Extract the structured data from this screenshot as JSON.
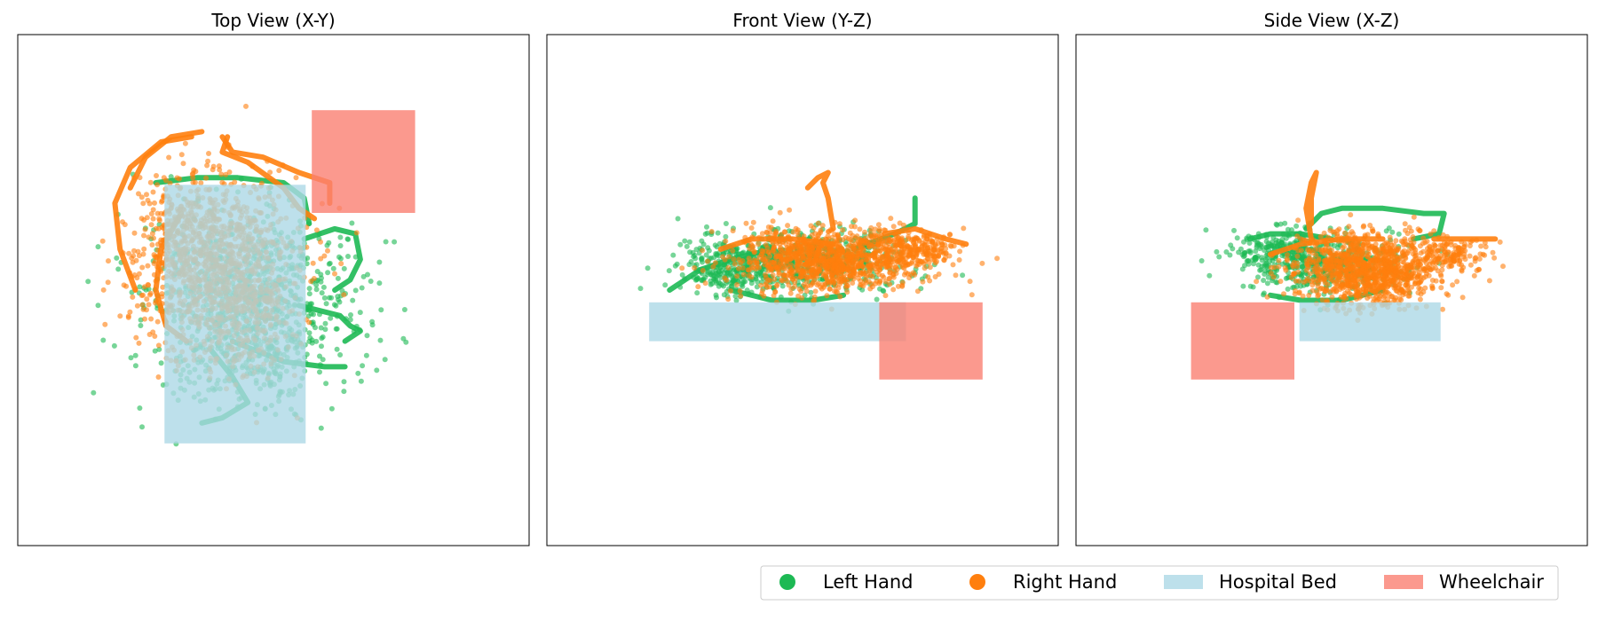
{
  "chart_data": {
    "type": "scatter",
    "legend_placement": "bottom-right",
    "grid": false,
    "axes_ticks": false,
    "colors": {
      "left_hand": "#1db954",
      "right_hand": "#ff7f0e",
      "hospital_bed": "#add8e6",
      "wheelchair": "#fa8072"
    },
    "legend": {
      "left_hand": "Left Hand",
      "right_hand": "Right Hand",
      "hospital_bed": "Hospital Bed",
      "wheelchair": "Wheelchair"
    },
    "panels": [
      {
        "id": "top",
        "title": "Top View (X-Y)",
        "xlim": [
          0,
          100
        ],
        "ylim": [
          0,
          100
        ],
        "rects": [
          {
            "kind": "hospital_bed",
            "x0": 28.7,
            "x1": 56.3,
            "y0": 20.0,
            "y1": 70.6
          },
          {
            "kind": "wheelchair",
            "x0": 57.5,
            "x1": 77.7,
            "y0": 65.1,
            "y1": 85.2
          }
        ],
        "left_hand": {
          "clusters": [
            {
              "cx": 46,
              "cy": 50,
              "sx": 10,
              "sy": 7,
              "n": 650
            },
            {
              "cx": 49,
              "cy": 38,
              "sx": 9,
              "sy": 6,
              "n": 250
            },
            {
              "cx": 38,
              "cy": 44,
              "sx": 7,
              "sy": 9,
              "n": 150
            }
          ],
          "paths": [
            [
              [
                27,
                71
              ],
              [
                35,
                72
              ],
              [
                43,
                72
              ],
              [
                52,
                71
              ],
              [
                56,
                68
              ],
              [
                57,
                63
              ]
            ],
            [
              [
                38,
                38
              ],
              [
                42,
                33
              ],
              [
                45,
                28
              ],
              [
                40,
                25
              ],
              [
                36,
                24
              ]
            ],
            [
              [
                55,
                47
              ],
              [
                63,
                45
              ],
              [
                65,
                43
              ],
              [
                67,
                42
              ],
              [
                64,
                40
              ]
            ],
            [
              [
                42,
                40
              ],
              [
                52,
                36
              ],
              [
                60,
                35
              ],
              [
                64,
                35
              ]
            ],
            [
              [
                56,
                60
              ],
              [
                62,
                62
              ],
              [
                66,
                61
              ],
              [
                67,
                56
              ],
              [
                65,
                52
              ],
              [
                62,
                50
              ]
            ]
          ]
        },
        "right_hand": {
          "clusters": [
            {
              "cx": 39,
              "cy": 55,
              "sx": 8,
              "sy": 9,
              "n": 950
            },
            {
              "cx": 33,
              "cy": 63,
              "sx": 5,
              "sy": 6,
              "n": 200
            },
            {
              "cx": 44,
              "cy": 45,
              "sx": 5,
              "sy": 5,
              "n": 150
            }
          ],
          "paths": [
            [
              [
                41,
                80
              ],
              [
                40,
                77
              ],
              [
                45,
                75
              ],
              [
                52,
                70
              ],
              [
                55,
                66
              ],
              [
                58,
                64
              ]
            ],
            [
              [
                40,
                80
              ],
              [
                42,
                77
              ],
              [
                48,
                76
              ],
              [
                55,
                73
              ],
              [
                61,
                71
              ],
              [
                61,
                67
              ]
            ],
            [
              [
                34,
                80
              ],
              [
                28,
                79
              ],
              [
                22,
                74
              ],
              [
                19,
                67
              ],
              [
                20,
                58
              ],
              [
                23,
                50
              ]
            ],
            [
              [
                36,
                81
              ],
              [
                30,
                80
              ],
              [
                25,
                76
              ],
              [
                22,
                70
              ]
            ],
            [
              [
                32,
                65
              ],
              [
                28,
                58
              ],
              [
                27,
                50
              ],
              [
                29,
                43
              ],
              [
                33,
                40
              ]
            ]
          ]
        }
      },
      {
        "id": "front",
        "title": "Front View (Y-Z)",
        "xlim": [
          0,
          100
        ],
        "ylim": [
          0,
          100
        ],
        "rects": [
          {
            "kind": "hospital_bed",
            "x0": 20.0,
            "x1": 70.2,
            "y0": 40.0,
            "y1": 47.6
          },
          {
            "kind": "wheelchair",
            "x0": 65.0,
            "x1": 85.2,
            "y0": 32.5,
            "y1": 47.6
          }
        ],
        "left_hand": {
          "clusters": [
            {
              "cx": 50,
              "cy": 56,
              "sx": 10,
              "sy": 3,
              "n": 600
            },
            {
              "cx": 36,
              "cy": 54,
              "sx": 5,
              "sy": 2.5,
              "n": 200
            }
          ],
          "paths": [
            [
              [
                24,
                50
              ],
              [
                30,
                54
              ],
              [
                36,
                56
              ],
              [
                44,
                58
              ]
            ],
            [
              [
                60,
                58
              ],
              [
                68,
                61
              ],
              [
                72,
                63
              ],
              [
                72,
                68
              ]
            ],
            [
              [
                36,
                50
              ],
              [
                44,
                48
              ],
              [
                52,
                48
              ],
              [
                58,
                49
              ]
            ]
          ]
        },
        "right_hand": {
          "clusters": [
            {
              "cx": 55,
              "cy": 56,
              "sx": 9,
              "sy": 3,
              "n": 1100
            },
            {
              "cx": 72,
              "cy": 58,
              "sx": 4,
              "sy": 1.5,
              "n": 200
            }
          ],
          "paths": [
            [
              [
                56,
                62
              ],
              [
                55,
                68
              ],
              [
                54,
                71
              ],
              [
                55,
                73
              ],
              [
                53,
                72
              ],
              [
                51,
                70
              ]
            ],
            [
              [
                66,
                61
              ],
              [
                72,
                62
              ],
              [
                78,
                60
              ],
              [
                82,
                59
              ]
            ],
            [
              [
                34,
                58
              ],
              [
                40,
                60
              ],
              [
                48,
                60
              ],
              [
                56,
                59
              ]
            ]
          ]
        }
      },
      {
        "id": "side",
        "title": "Side View (X-Z)",
        "xlim": [
          0,
          100
        ],
        "ylim": [
          0,
          100
        ],
        "rects": [
          {
            "kind": "hospital_bed",
            "x0": 43.7,
            "x1": 71.3,
            "y0": 40.0,
            "y1": 47.6
          },
          {
            "kind": "wheelchair",
            "x0": 22.5,
            "x1": 42.7,
            "y0": 32.5,
            "y1": 47.6
          }
        ],
        "left_hand": {
          "clusters": [
            {
              "cx": 48,
              "cy": 55,
              "sx": 8,
              "sy": 3,
              "n": 450
            },
            {
              "cx": 40,
              "cy": 58,
              "sx": 5,
              "sy": 2,
              "n": 150
            }
          ],
          "paths": [
            [
              [
                45,
                62
              ],
              [
                48,
                65
              ],
              [
                52,
                66
              ],
              [
                60,
                66
              ],
              [
                68,
                65
              ],
              [
                72,
                65
              ],
              [
                71,
                61
              ],
              [
                66,
                60
              ]
            ],
            [
              [
                34,
                60
              ],
              [
                38,
                61
              ],
              [
                44,
                61
              ],
              [
                50,
                60
              ]
            ],
            [
              [
                38,
                49
              ],
              [
                44,
                48
              ],
              [
                52,
                48
              ],
              [
                60,
                50
              ]
            ]
          ]
        },
        "right_hand": {
          "clusters": [
            {
              "cx": 57,
              "cy": 54,
              "sx": 7,
              "sy": 3.5,
              "n": 1100
            },
            {
              "cx": 73,
              "cy": 57,
              "sx": 4,
              "sy": 1.5,
              "n": 150
            }
          ],
          "paths": [
            [
              [
                46,
                60
              ],
              [
                45,
                66
              ],
              [
                46,
                71
              ],
              [
                47,
                73
              ],
              [
                46,
                68
              ],
              [
                46,
                63
              ]
            ],
            [
              [
                38,
                57
              ],
              [
                44,
                59
              ],
              [
                52,
                60
              ],
              [
                60,
                60
              ]
            ],
            [
              [
                70,
                60
              ],
              [
                76,
                60
              ],
              [
                82,
                60
              ]
            ]
          ]
        }
      }
    ]
  }
}
